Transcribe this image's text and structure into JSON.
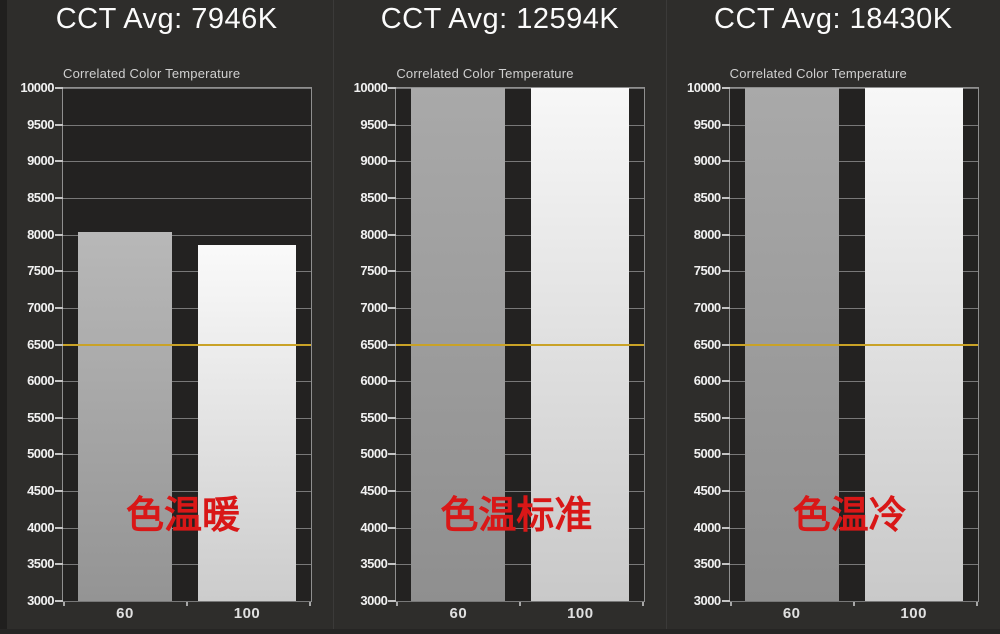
{
  "ui": {
    "panels": [
      {
        "title": "CCT Avg: 7946K",
        "chart_title": "Correlated Color Temperature",
        "annotation": "色温暖"
      },
      {
        "title": "CCT Avg: 12594K",
        "chart_title": "Correlated Color Temperature",
        "annotation": "色温标准"
      },
      {
        "title": "CCT Avg: 18430K",
        "chart_title": "Correlated Color Temperature",
        "annotation": "色温冷"
      }
    ]
  },
  "colors": {
    "background": "#2d2c2b",
    "plot_background": "#232221",
    "grid": "#787878",
    "plot_border": "#8f8f8f",
    "axis_text": "#f1f1f1",
    "title_text": "#fbfbfb",
    "reference_line": "#c9a227",
    "annotation_red": "#d91717",
    "bar_gray_top": "#b8b8b8",
    "bar_gray_bottom": "#949494",
    "bar_white_top": "#fafafa",
    "bar_white_bottom": "#cccccc"
  },
  "chart_data": [
    {
      "type": "bar",
      "header": "CCT Avg: 7946K",
      "avg_cct_k": 7946,
      "title": "Correlated Color Temperature",
      "categories": [
        "60",
        "100"
      ],
      "values": [
        8030,
        7860
      ],
      "clipped_at_ymax": false,
      "ylim": [
        3000,
        10000
      ],
      "yticks": [
        10000,
        9500,
        9000,
        8500,
        8000,
        7500,
        7000,
        6500,
        6000,
        5500,
        5000,
        4500,
        4000,
        3500,
        3000
      ],
      "reference_line": {
        "value": 6500,
        "color": "#c9a227"
      },
      "annotation": "色温暖",
      "bar_colors": [
        {
          "top": "#b8b8b8",
          "bottom": "#949494"
        },
        {
          "top": "#fafafa",
          "bottom": "#cccccc"
        }
      ],
      "grid": true,
      "legend": false
    },
    {
      "type": "bar",
      "header": "CCT Avg: 12594K",
      "avg_cct_k": 12594,
      "title": "Correlated Color Temperature",
      "categories": [
        "60",
        "100"
      ],
      "values": [
        12594,
        12594
      ],
      "clipped_at_ymax": true,
      "ylim": [
        3000,
        10000
      ],
      "yticks": [
        10000,
        9500,
        9000,
        8500,
        8000,
        7500,
        7000,
        6500,
        6000,
        5500,
        5000,
        4500,
        4000,
        3500,
        3000
      ],
      "reference_line": {
        "value": 6500,
        "color": "#c9a227"
      },
      "annotation": "色温标准",
      "bar_colors": [
        {
          "top": "#a9a9a9",
          "bottom": "#8f8f8f"
        },
        {
          "top": "#f7f7f7",
          "bottom": "#c9c9c9"
        }
      ],
      "grid": true,
      "legend": false
    },
    {
      "type": "bar",
      "header": "CCT Avg: 18430K",
      "avg_cct_k": 18430,
      "title": "Correlated Color Temperature",
      "categories": [
        "60",
        "100"
      ],
      "values": [
        18430,
        18430
      ],
      "clipped_at_ymax": true,
      "ylim": [
        3000,
        10000
      ],
      "yticks": [
        10000,
        9500,
        9000,
        8500,
        8000,
        7500,
        7000,
        6500,
        6000,
        5500,
        5000,
        4500,
        4000,
        3500,
        3000
      ],
      "reference_line": {
        "value": 6500,
        "color": "#c9a227"
      },
      "annotation": "色温冷",
      "bar_colors": [
        {
          "top": "#a9a9a9",
          "bottom": "#8f8f8f"
        },
        {
          "top": "#f7f7f7",
          "bottom": "#c9c9c9"
        }
      ],
      "grid": true,
      "legend": false
    }
  ]
}
